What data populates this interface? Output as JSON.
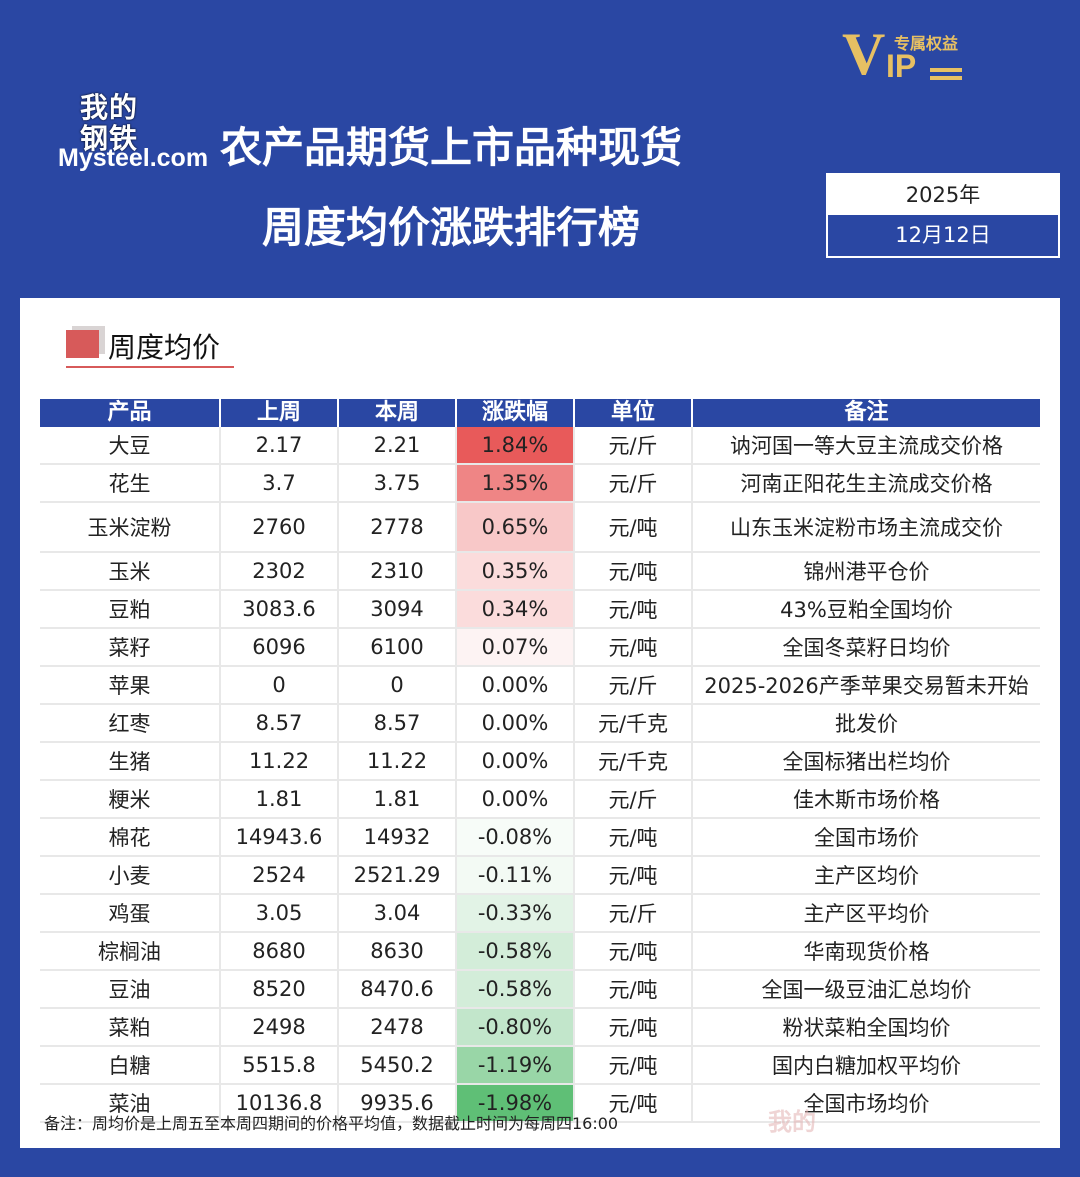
{
  "logo": {
    "cn_line1": "我的",
    "cn_line2": "钢铁",
    "en": "Mysteel.com"
  },
  "title": {
    "line1": "农产品期货上市品种现货",
    "line2": "周度均价涨跌排行榜"
  },
  "vip": {
    "letter_v": "V",
    "letters_ip": "IP",
    "tag": "专属权益"
  },
  "date": {
    "year": "2025年",
    "day": "12月12日"
  },
  "section": {
    "title": "周度均价"
  },
  "table": {
    "headers": [
      "产品",
      "上周",
      "本周",
      "涨跌幅",
      "单位",
      "备注"
    ],
    "rows": [
      {
        "product": "大豆",
        "last": "2.17",
        "this": "2.21",
        "change": "1.84%",
        "unit": "元/斤",
        "note": "讷河国一等大豆主流成交价格",
        "color": "#e85a5a"
      },
      {
        "product": "花生",
        "last": "3.7",
        "this": "3.75",
        "change": "1.35%",
        "unit": "元/斤",
        "note": "河南正阳花生主流成交价格",
        "color": "#ef8585"
      },
      {
        "product": "玉米淀粉",
        "last": "2760",
        "this": "2778",
        "change": "0.65%",
        "unit": "元/吨",
        "note": "山东玉米淀粉市场主流成交价",
        "color": "#f8c8c8"
      },
      {
        "product": "玉米",
        "last": "2302",
        "this": "2310",
        "change": "0.35%",
        "unit": "元/吨",
        "note": "锦州港平仓价",
        "color": "#fbdcdc"
      },
      {
        "product": "豆粕",
        "last": "3083.6",
        "this": "3094",
        "change": "0.34%",
        "unit": "元/吨",
        "note": "43%豆粕全国均价",
        "color": "#fbdcdc"
      },
      {
        "product": "菜籽",
        "last": "6096",
        "this": "6100",
        "change": "0.07%",
        "unit": "元/吨",
        "note": "全国冬菜籽日均价",
        "color": "#fdf3f3"
      },
      {
        "product": "苹果",
        "last": "0",
        "this": "0",
        "change": "0.00%",
        "unit": "元/斤",
        "note": "2025-2026产季苹果交易暂未开始",
        "color": "#ffffff"
      },
      {
        "product": "红枣",
        "last": "8.57",
        "this": "8.57",
        "change": "0.00%",
        "unit": "元/千克",
        "note": "批发价",
        "color": "#ffffff"
      },
      {
        "product": "生猪",
        "last": "11.22",
        "this": "11.22",
        "change": "0.00%",
        "unit": "元/千克",
        "note": "全国标猪出栏均价",
        "color": "#ffffff"
      },
      {
        "product": "粳米",
        "last": "1.81",
        "this": "1.81",
        "change": "0.00%",
        "unit": "元/斤",
        "note": "佳木斯市场价格",
        "color": "#ffffff"
      },
      {
        "product": "棉花",
        "last": "14943.6",
        "this": "14932",
        "change": "-0.08%",
        "unit": "元/吨",
        "note": "全国市场价",
        "color": "#f7fcf8"
      },
      {
        "product": "小麦",
        "last": "2524",
        "this": "2521.29",
        "change": "-0.11%",
        "unit": "元/吨",
        "note": "主产区均价",
        "color": "#f3faf4"
      },
      {
        "product": "鸡蛋",
        "last": "3.05",
        "this": "3.04",
        "change": "-0.33%",
        "unit": "元/斤",
        "note": "主产区平均价",
        "color": "#e2f3e6"
      },
      {
        "product": "棕榈油",
        "last": "8680",
        "this": "8630",
        "change": "-0.58%",
        "unit": "元/吨",
        "note": "华南现货价格",
        "color": "#d3edd9"
      },
      {
        "product": "豆油",
        "last": "8520",
        "this": "8470.6",
        "change": "-0.58%",
        "unit": "元/吨",
        "note": "全国一级豆油汇总均价",
        "color": "#d3edd9"
      },
      {
        "product": "菜粕",
        "last": "2498",
        "this": "2478",
        "change": "-0.80%",
        "unit": "元/吨",
        "note": "粉状菜粕全国均价",
        "color": "#c2e6cb"
      },
      {
        "product": "白糖",
        "last": "5515.8",
        "this": "5450.2",
        "change": "-1.19%",
        "unit": "元/吨",
        "note": "国内白糖加权平均价",
        "color": "#99d6a7"
      },
      {
        "product": "菜油",
        "last": "10136.8",
        "this": "9935.6",
        "change": "-1.98%",
        "unit": "元/吨",
        "note": "全国市场均价",
        "color": "#5fbf76"
      }
    ]
  },
  "footnote": "备注：周均价是上周五至本周四期间的价格平均值，数据截止时间为每周四16:00"
}
